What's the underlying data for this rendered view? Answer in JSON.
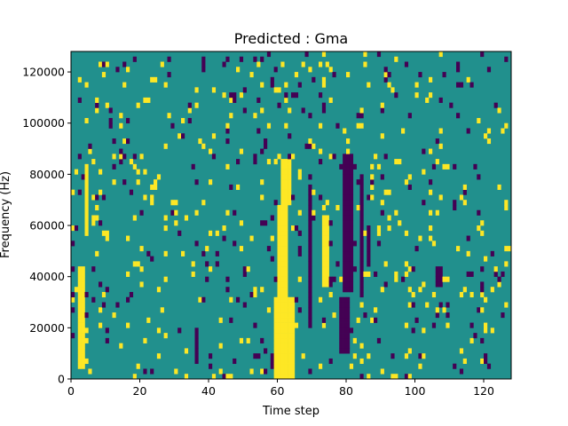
{
  "chart_data": {
    "type": "heatmap",
    "title": "Predicted : Gma",
    "xlabel": "Time step",
    "ylabel": "Frequency (Hz)",
    "xlim": [
      0,
      128
    ],
    "ylim": [
      0,
      128000
    ],
    "xticks": [
      "0",
      "20",
      "40",
      "60",
      "80",
      "100",
      "120"
    ],
    "yticks": [
      "0",
      "20000",
      "40000",
      "60000",
      "80000",
      "100000",
      "120000"
    ],
    "colormap": {
      "background": "#21908d",
      "low": "#440154",
      "high": "#fde725"
    },
    "n_bins": 64,
    "bands": [
      {
        "value": "high",
        "x0": 59,
        "x1": 65,
        "y0": 0,
        "y1": 16
      },
      {
        "value": "high",
        "x0": 60,
        "x1": 63,
        "y0": 16,
        "y1": 34
      },
      {
        "value": "high",
        "x0": 61,
        "x1": 64,
        "y0": 34,
        "y1": 43
      },
      {
        "value": "low",
        "x0": 78,
        "x1": 81,
        "y0": 5,
        "y1": 16
      },
      {
        "value": "low",
        "x0": 79,
        "x1": 82,
        "y0": 17,
        "y1": 44
      },
      {
        "value": "low",
        "x0": 84,
        "x1": 85,
        "y0": 16,
        "y1": 40
      },
      {
        "value": "low",
        "x0": 86,
        "x1": 87,
        "y0": 22,
        "y1": 30
      },
      {
        "value": "low",
        "x0": 69,
        "x1": 70,
        "y0": 10,
        "y1": 38
      },
      {
        "value": "high",
        "x0": 73,
        "x1": 75,
        "y0": 18,
        "y1": 32
      },
      {
        "value": "high",
        "x0": 2,
        "x1": 4,
        "y0": 2,
        "y1": 22
      },
      {
        "value": "high",
        "x0": 4,
        "x1": 5,
        "y0": 28,
        "y1": 42
      },
      {
        "value": "low",
        "x0": 36,
        "x1": 37,
        "y0": 3,
        "y1": 10
      },
      {
        "value": "low",
        "x0": 106,
        "x1": 108,
        "y0": 18,
        "y1": 22
      }
    ],
    "density": {
      "high": 0.042,
      "low": 0.034,
      "seed": 7
    }
  }
}
